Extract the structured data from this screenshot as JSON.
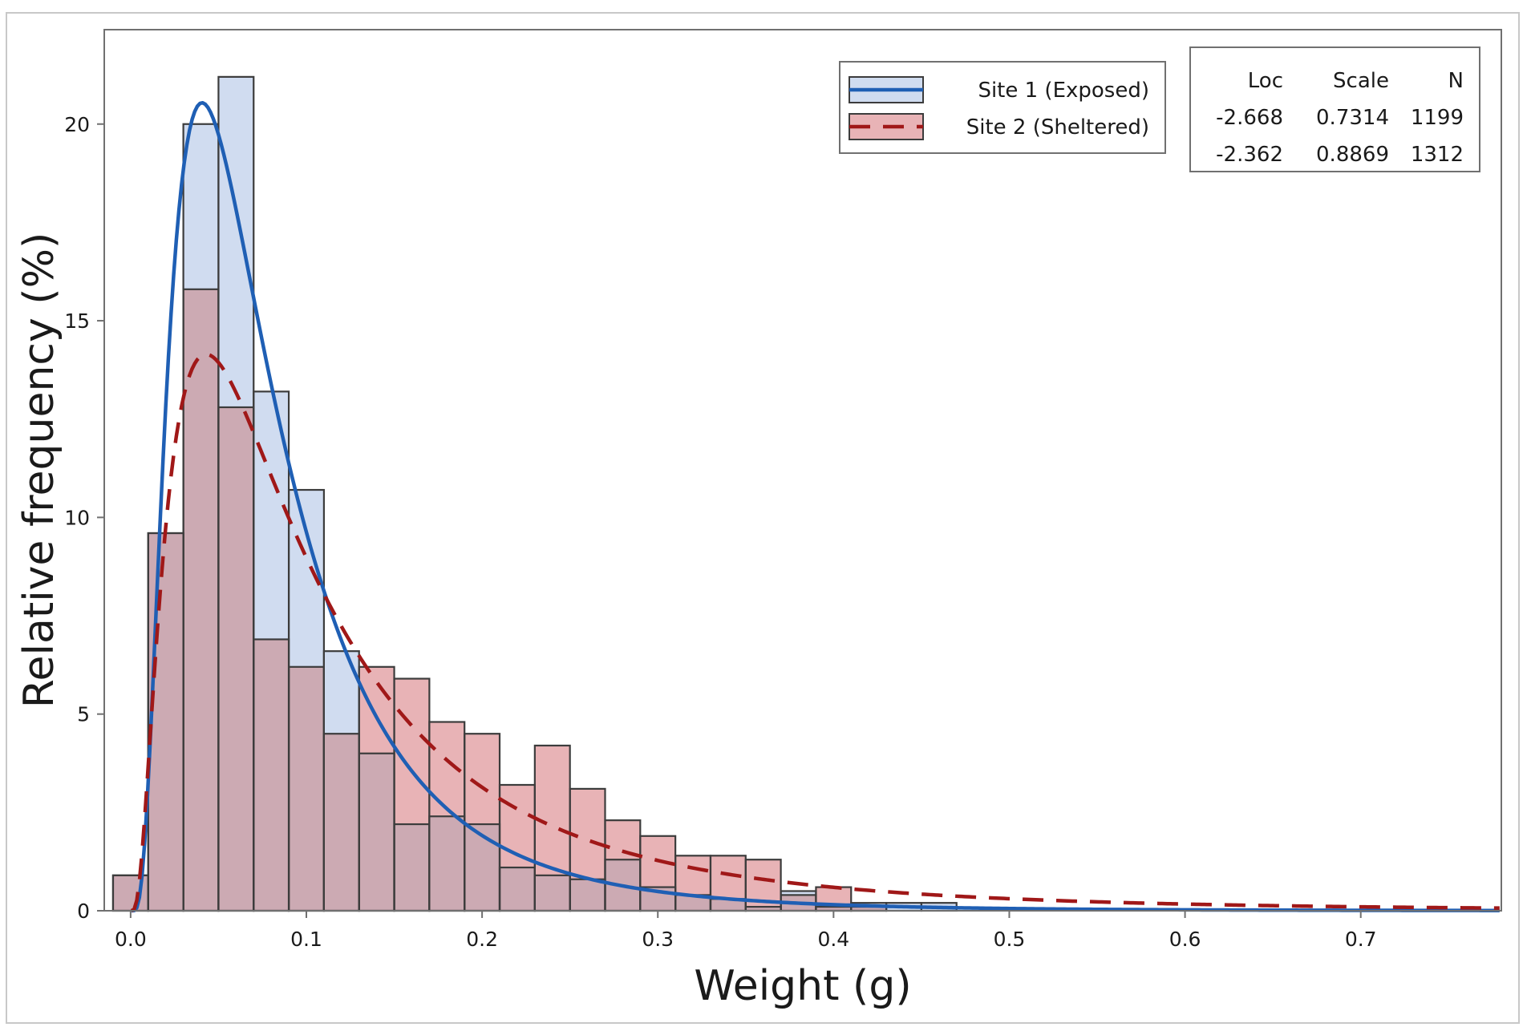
{
  "chart_data": {
    "type": "histogram",
    "title": "",
    "xlabel": "Weight (g)",
    "ylabel": "Relative frequency (%)",
    "xlim": [
      -0.015,
      0.78
    ],
    "ylim": [
      0,
      22.4
    ],
    "xticks": [
      0.0,
      0.1,
      0.2,
      0.3,
      0.4,
      0.5,
      0.6,
      0.7
    ],
    "xtick_labels": [
      "0.0",
      "0.1",
      "0.2",
      "0.3",
      "0.4",
      "0.5",
      "0.6",
      "0.7"
    ],
    "yticks": [
      0,
      5,
      10,
      15,
      20
    ],
    "ytick_labels": [
      "0",
      "5",
      "10",
      "15",
      "20"
    ],
    "bin_edges": [
      -0.01,
      0.01,
      0.03,
      0.05,
      0.07,
      0.09,
      0.11,
      0.13,
      0.15,
      0.17,
      0.19,
      0.21,
      0.23,
      0.25,
      0.27,
      0.29,
      0.31,
      0.33,
      0.35,
      0.37,
      0.39,
      0.41,
      0.43,
      0.45,
      0.47,
      0.49
    ],
    "series": [
      {
        "name": "Site 1 (Exposed)",
        "fill_color": "#d0dcf0",
        "line_color": "#1f5fb4",
        "line_style": "solid",
        "values": [
          0.9,
          9.6,
          20.0,
          21.2,
          13.2,
          10.7,
          6.6,
          4.0,
          2.2,
          2.4,
          2.2,
          1.1,
          0.9,
          0.8,
          1.3,
          0.6,
          0.4,
          0.3,
          0.1,
          0.5,
          0.1,
          0.2,
          0.2,
          0.2,
          0.0
        ],
        "fit": {
          "distribution": "lognormal",
          "loc": -2.668,
          "scale": 0.7314,
          "n": 1199
        }
      },
      {
        "name": "Site 2 (Sheltered)",
        "fill_color": "#e8b3b6",
        "line_color": "#a01818",
        "line_style": "dashed",
        "values": [
          0.9,
          9.6,
          15.8,
          12.8,
          6.9,
          6.2,
          4.5,
          6.2,
          5.9,
          4.8,
          4.5,
          3.2,
          4.2,
          3.1,
          2.3,
          1.9,
          1.4,
          1.4,
          1.3,
          0.4,
          0.6,
          0.1,
          0.0,
          0.0,
          0.0
        ],
        "fit": {
          "distribution": "lognormal",
          "loc": -2.362,
          "scale": 0.8869,
          "n": 1312
        }
      }
    ],
    "legend": {
      "position": "top-right",
      "entries": [
        "Site 1 (Exposed)",
        "Site 2 (Sheltered)"
      ]
    },
    "stats_table": {
      "headers": [
        "Loc",
        "Scale",
        "N"
      ],
      "rows": [
        [
          "-2.668",
          "0.7314",
          "1199"
        ],
        [
          "-2.362",
          "0.8869",
          "1312"
        ]
      ]
    }
  },
  "colors": {
    "overlap_fill": "#ccaab3",
    "bar_stroke": "#3c3c3c",
    "axis": "#707070",
    "frame": "#c8c8c8"
  }
}
